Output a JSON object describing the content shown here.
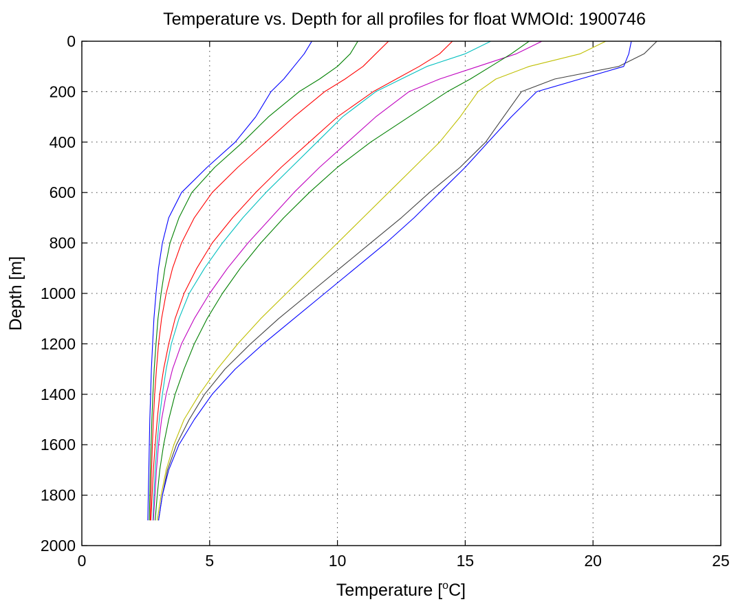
{
  "chart_data": {
    "type": "line",
    "title": "Temperature vs. Depth for all profiles for float WMOId: 1900746",
    "xlabel_prefix": "Temperature [",
    "xlabel_sup": "o",
    "xlabel_suffix": "C]",
    "ylabel": "Depth [m]",
    "xlim": [
      0,
      25
    ],
    "ylim": [
      0,
      2000
    ],
    "y_reversed": true,
    "grid": true,
    "x_ticks": [
      0,
      5,
      10,
      15,
      20,
      25
    ],
    "y_ticks": [
      0,
      200,
      400,
      600,
      800,
      1000,
      1200,
      1400,
      1600,
      1800,
      2000
    ],
    "depth_levels": [
      0,
      50,
      100,
      150,
      200,
      300,
      400,
      500,
      600,
      700,
      800,
      900,
      1000,
      1100,
      1200,
      1300,
      1400,
      1500,
      1600,
      1700,
      1800,
      1900
    ],
    "series_colors": [
      "#0000ff",
      "#008000",
      "#ff0000",
      "#00bfbf",
      "#bf00bf",
      "#bfbf00",
      "#404040"
    ],
    "series": [
      {
        "values": [
          9.0,
          8.7,
          8.3,
          7.9,
          7.4,
          6.8,
          6.0,
          4.9,
          3.9,
          3.4,
          3.15,
          3.0,
          2.9,
          2.82,
          2.77,
          2.72,
          2.69,
          2.66,
          2.64,
          2.62,
          2.6,
          2.58
        ]
      },
      {
        "values": [
          10.8,
          10.5,
          10.0,
          9.3,
          8.5,
          7.3,
          6.3,
          5.2,
          4.3,
          3.8,
          3.45,
          3.25,
          3.1,
          2.98,
          2.9,
          2.83,
          2.78,
          2.74,
          2.71,
          2.68,
          2.66,
          2.64
        ]
      },
      {
        "values": [
          12.0,
          11.5,
          11.0,
          10.3,
          9.5,
          8.3,
          7.2,
          6.1,
          5.1,
          4.4,
          3.9,
          3.55,
          3.3,
          3.12,
          3.0,
          2.92,
          2.85,
          2.8,
          2.76,
          2.73,
          2.7,
          2.68
        ]
      },
      {
        "values": [
          16.0,
          15.0,
          13.5,
          12.5,
          11.5,
          10.2,
          9.2,
          8.2,
          7.2,
          6.3,
          5.5,
          4.8,
          4.2,
          3.8,
          3.5,
          3.3,
          3.15,
          3.03,
          2.94,
          2.87,
          2.82,
          2.78
        ]
      },
      {
        "values": [
          18.0,
          17.0,
          15.5,
          14.0,
          12.8,
          11.5,
          10.4,
          9.3,
          8.3,
          7.4,
          6.5,
          5.7,
          5.0,
          4.4,
          3.9,
          3.55,
          3.3,
          3.12,
          3.0,
          2.92,
          2.86,
          2.8
        ]
      },
      {
        "values": [
          20.5,
          19.5,
          17.5,
          16.2,
          15.5,
          14.8,
          14.0,
          13.0,
          12.0,
          11.0,
          10.0,
          9.0,
          8.0,
          7.0,
          6.1,
          5.3,
          4.6,
          4.0,
          3.6,
          3.3,
          3.1,
          2.95
        ]
      },
      {
        "values": [
          22.5,
          22.0,
          21.0,
          18.5,
          17.2,
          16.5,
          15.8,
          14.8,
          13.6,
          12.5,
          11.3,
          10.1,
          8.9,
          7.7,
          6.6,
          5.6,
          4.8,
          4.2,
          3.7,
          3.35,
          3.15,
          3.0
        ]
      },
      {
        "values": [
          21.5,
          21.4,
          21.2,
          19.5,
          17.8,
          16.8,
          15.9,
          15.0,
          14.0,
          13.0,
          11.9,
          10.7,
          9.5,
          8.3,
          7.1,
          6.0,
          5.1,
          4.4,
          3.8,
          3.4,
          3.15,
          3.0
        ]
      },
      {
        "values": [
          17.5,
          16.8,
          16.0,
          15.2,
          14.3,
          12.8,
          11.3,
          10.0,
          8.9,
          7.9,
          7.0,
          6.2,
          5.5,
          4.9,
          4.4,
          4.0,
          3.65,
          3.4,
          3.2,
          3.05,
          2.95,
          2.87
        ]
      },
      {
        "values": [
          14.5,
          14.0,
          13.2,
          12.3,
          11.4,
          10.0,
          8.9,
          7.8,
          6.8,
          5.9,
          5.1,
          4.5,
          4.0,
          3.65,
          3.4,
          3.2,
          3.05,
          2.95,
          2.87,
          2.8,
          2.75,
          2.7
        ]
      }
    ]
  }
}
